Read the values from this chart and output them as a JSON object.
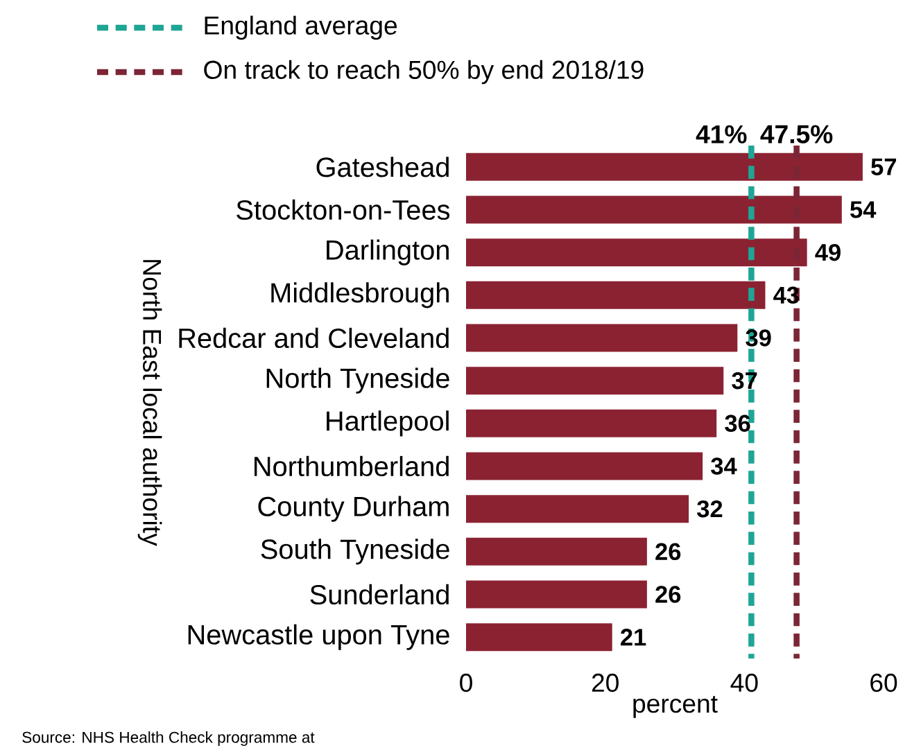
{
  "chart_data": {
    "type": "bar",
    "orientation": "horizontal",
    "categories": [
      "Gateshead",
      "Stockton-on-Tees",
      "Darlington",
      "Middlesbrough",
      "Redcar and Cleveland",
      "North Tyneside",
      "Hartlepool",
      "Northumberland",
      "County Durham",
      "South Tyneside",
      "Sunderland",
      "Newcastle upon Tyne"
    ],
    "values": [
      57,
      54,
      49,
      43,
      39,
      37,
      36,
      34,
      32,
      26,
      26,
      21
    ],
    "color": "#8b2232",
    "data_labels": true,
    "xlim": [
      0,
      60
    ],
    "xticks": [
      0,
      20,
      40,
      60
    ],
    "xlabel": "percent",
    "ylabel": "North East local authority",
    "ref_lines": [
      {
        "axis": "x",
        "value": 41,
        "label": "England average",
        "color": "#1fa595",
        "line_style": "dashed"
      },
      {
        "axis": "x",
        "value": 47.5,
        "label": "On track to reach 50% by end 2018/19",
        "color": "#7b2636",
        "line_style": "dashed"
      }
    ],
    "annotations": [
      "41%",
      "47.5%",
      "Source: NHS Health Check programme at"
    ],
    "legend": "top left"
  }
}
